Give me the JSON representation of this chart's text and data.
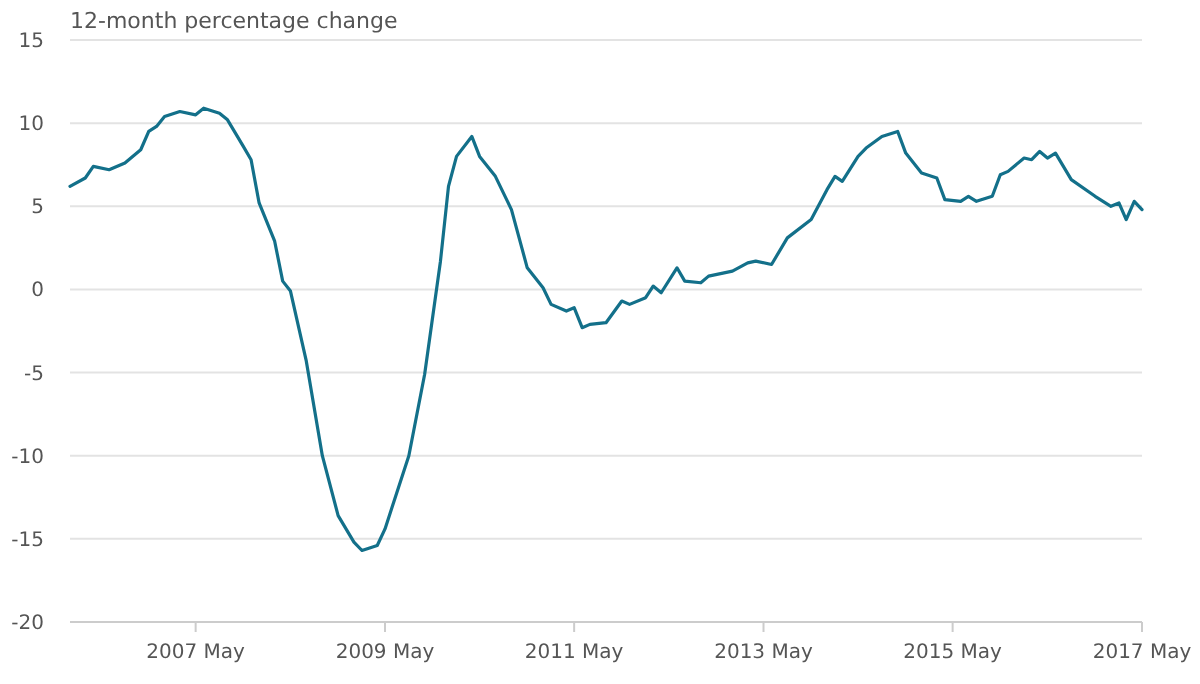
{
  "chart_data": {
    "type": "line",
    "ylabel": "12-month percentage change",
    "x": [
      "2006-01",
      "2006-03",
      "2006-04",
      "2006-06",
      "2006-08",
      "2006-10",
      "2006-11",
      "2006-12",
      "2007-01",
      "2007-03",
      "2007-05",
      "2007-06",
      "2007-08",
      "2007-09",
      "2007-11",
      "2007-12",
      "2008-01",
      "2008-03",
      "2008-04",
      "2008-05",
      "2008-07",
      "2008-09",
      "2008-11",
      "2009-01",
      "2009-02",
      "2009-04",
      "2009-05",
      "2009-08",
      "2009-10",
      "2009-12",
      "2010-01",
      "2010-02",
      "2010-04",
      "2010-05",
      "2010-07",
      "2010-09",
      "2010-11",
      "2011-01",
      "2011-02",
      "2011-04",
      "2011-05",
      "2011-06",
      "2011-07",
      "2011-09",
      "2011-11",
      "2011-12",
      "2012-02",
      "2012-03",
      "2012-04",
      "2012-06",
      "2012-07",
      "2012-09",
      "2012-10",
      "2013-01",
      "2013-03",
      "2013-04",
      "2013-06",
      "2013-08",
      "2013-11",
      "2014-01",
      "2014-02",
      "2014-03",
      "2014-05",
      "2014-06",
      "2014-08",
      "2014-10",
      "2014-11",
      "2015-01",
      "2015-03",
      "2015-04",
      "2015-06",
      "2015-07",
      "2015-08",
      "2015-10",
      "2015-11",
      "2015-12",
      "2016-02",
      "2016-03",
      "2016-04",
      "2016-05",
      "2016-06",
      "2016-08",
      "2016-11",
      "2017-01",
      "2017-02",
      "2017-03",
      "2017-04",
      "2017-05"
    ],
    "series": [
      {
        "color": "#13708a",
        "values": [
          6.2,
          6.7,
          7.4,
          7.2,
          7.6,
          8.4,
          9.5,
          9.8,
          10.4,
          10.7,
          10.5,
          10.9,
          10.6,
          10.2,
          8.6,
          7.8,
          5.2,
          2.9,
          0.5,
          -0.1,
          -4.3,
          -10,
          -13.6,
          -15.2,
          -15.7,
          -15.4,
          -14.4,
          -10,
          -5.1,
          1.7,
          6.2,
          8,
          9.2,
          8,
          6.8,
          4.8,
          1.3,
          0.1,
          -0.9,
          -1.3,
          -1.1,
          -2.3,
          -2.1,
          -2,
          -0.7,
          -0.9,
          -0.5,
          0.2,
          -0.2,
          1.3,
          0.5,
          0.4,
          0.8,
          1.1,
          1.6,
          1.7,
          1.5,
          3.1,
          4.2,
          6,
          6.8,
          6.5,
          8,
          8.5,
          9.2,
          9.5,
          8.2,
          7,
          6.7,
          5.4,
          5.3,
          5.6,
          5.3,
          5.6,
          6.9,
          7.1,
          7.9,
          7.8,
          8.3,
          7.9,
          8.2,
          6.6,
          5.6,
          5,
          5.2,
          4.2,
          5.3,
          4.8
        ]
      }
    ],
    "xlim": [
      "2006-01",
      "2017-05"
    ],
    "xticks": [
      {
        "value": "2007-05",
        "label": "2007 May"
      },
      {
        "value": "2009-05",
        "label": "2009 May"
      },
      {
        "value": "2011-05",
        "label": "2011 May"
      },
      {
        "value": "2013-05",
        "label": "2013 May"
      },
      {
        "value": "2015-05",
        "label": "2015 May"
      },
      {
        "value": "2017-05",
        "label": "2017 May"
      }
    ],
    "ylim": [
      -20,
      15
    ],
    "yticks": [
      -20,
      -15,
      -10,
      -5,
      0,
      5,
      10,
      15
    ],
    "grid": "y"
  }
}
